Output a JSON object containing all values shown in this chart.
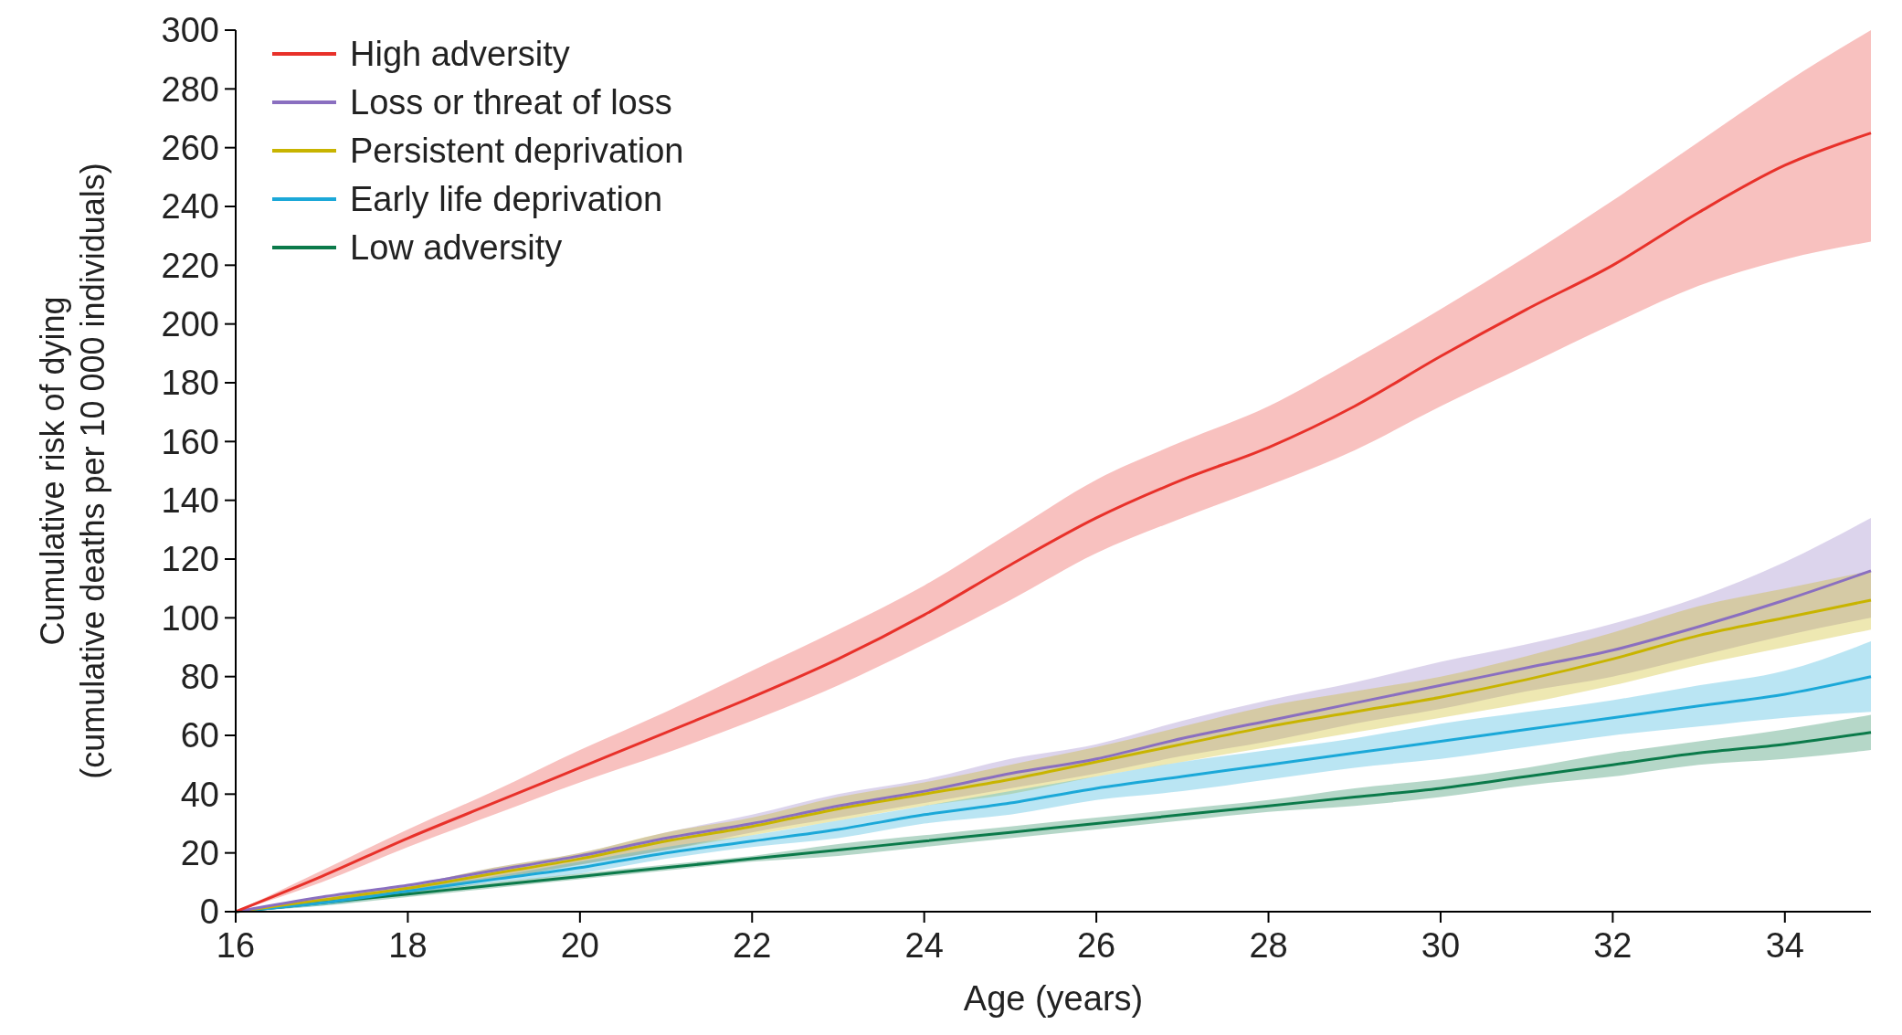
{
  "chart_data": {
    "type": "line",
    "xlabel": "Age (years)",
    "ylabel": "Cumulative risk of dying\n(cumulative deaths per 10 000 individuals)",
    "x": [
      16,
      17,
      18,
      19,
      20,
      21,
      22,
      23,
      24,
      25,
      26,
      27,
      28,
      29,
      30,
      31,
      32,
      33,
      34,
      35
    ],
    "xlim": [
      16,
      35
    ],
    "xticks": [
      16,
      18,
      20,
      22,
      24,
      26,
      28,
      30,
      32,
      34
    ],
    "ylim": [
      0,
      300
    ],
    "yticks": [
      0,
      20,
      40,
      60,
      80,
      100,
      120,
      140,
      160,
      180,
      200,
      220,
      240,
      260,
      280,
      300
    ],
    "grid": false,
    "legend": "top left",
    "line_style": "solid",
    "marker": "none",
    "series": [
      {
        "name": "High adversity",
        "color": "#e8312a",
        "values": [
          0,
          12,
          25,
          37,
          49,
          61,
          73,
          86,
          101,
          118,
          134,
          147,
          158,
          172,
          189,
          205,
          220,
          238,
          254,
          265
        ],
        "lower": [
          0,
          10,
          22,
          33,
          44,
          54,
          65,
          77,
          91,
          106,
          122,
          134,
          145,
          157,
          172,
          186,
          200,
          213,
          222,
          228
        ],
        "upper": [
          0,
          14,
          28,
          41,
          55,
          68,
          82,
          96,
          111,
          129,
          147,
          160,
          172,
          188,
          205,
          223,
          242,
          262,
          282,
          300
        ]
      },
      {
        "name": "Loss or threat of loss",
        "color": "#8a6fc0",
        "values": [
          0,
          5,
          9,
          14,
          19,
          25,
          30,
          36,
          41,
          47,
          52,
          59,
          65,
          71,
          77,
          83,
          89,
          97,
          106,
          116
        ],
        "lower": [
          0,
          3,
          7,
          11,
          16,
          21,
          27,
          32,
          37,
          42,
          47,
          53,
          58,
          64,
          69,
          75,
          80,
          87,
          94,
          100
        ],
        "upper": [
          0,
          5,
          9,
          15,
          20,
          27,
          33,
          40,
          45,
          52,
          57,
          65,
          72,
          78,
          85,
          91,
          98,
          107,
          119,
          134
        ]
      },
      {
        "name": "Persistent deprivation",
        "color": "#c8b400",
        "values": [
          0,
          4,
          8,
          13,
          18,
          24,
          29,
          35,
          40,
          45,
          51,
          57,
          63,
          68,
          73,
          79,
          86,
          94,
          100,
          106
        ],
        "lower": [
          0,
          3,
          7,
          11,
          16,
          21,
          26,
          31,
          36,
          40,
          46,
          51,
          56,
          61,
          66,
          71,
          77,
          84,
          90,
          96
        ],
        "upper": [
          0,
          5,
          9,
          15,
          20,
          27,
          32,
          39,
          44,
          50,
          56,
          63,
          70,
          75,
          80,
          87,
          95,
          104,
          110,
          116
        ]
      },
      {
        "name": "Early life deprivation",
        "color": "#1ba8d8",
        "values": [
          0,
          3,
          7,
          11,
          15,
          20,
          24,
          28,
          33,
          37,
          42,
          46,
          50,
          54,
          58,
          62,
          66,
          70,
          74,
          80
        ],
        "lower": [
          0,
          2,
          6,
          10,
          13,
          18,
          22,
          25,
          30,
          33,
          38,
          41,
          45,
          49,
          52,
          56,
          60,
          63,
          66,
          68
        ],
        "upper": [
          0,
          4,
          8,
          12,
          17,
          22,
          26,
          31,
          36,
          41,
          46,
          51,
          55,
          59,
          64,
          68,
          72,
          77,
          82,
          92
        ]
      },
      {
        "name": "Low adversity",
        "color": "#0b7a4a",
        "values": [
          0,
          3,
          6,
          9,
          12,
          15,
          18,
          21,
          24,
          27,
          30,
          33,
          36,
          39,
          42,
          46,
          50,
          54,
          57,
          61
        ],
        "lower": [
          0,
          2,
          5,
          8,
          11,
          14,
          17,
          19,
          22,
          25,
          28,
          31,
          34,
          36,
          39,
          43,
          46,
          50,
          52,
          55
        ],
        "upper": [
          0,
          4,
          7,
          10,
          13,
          16,
          19,
          23,
          26,
          29,
          32,
          35,
          38,
          42,
          45,
          49,
          54,
          58,
          62,
          67
        ]
      }
    ]
  }
}
